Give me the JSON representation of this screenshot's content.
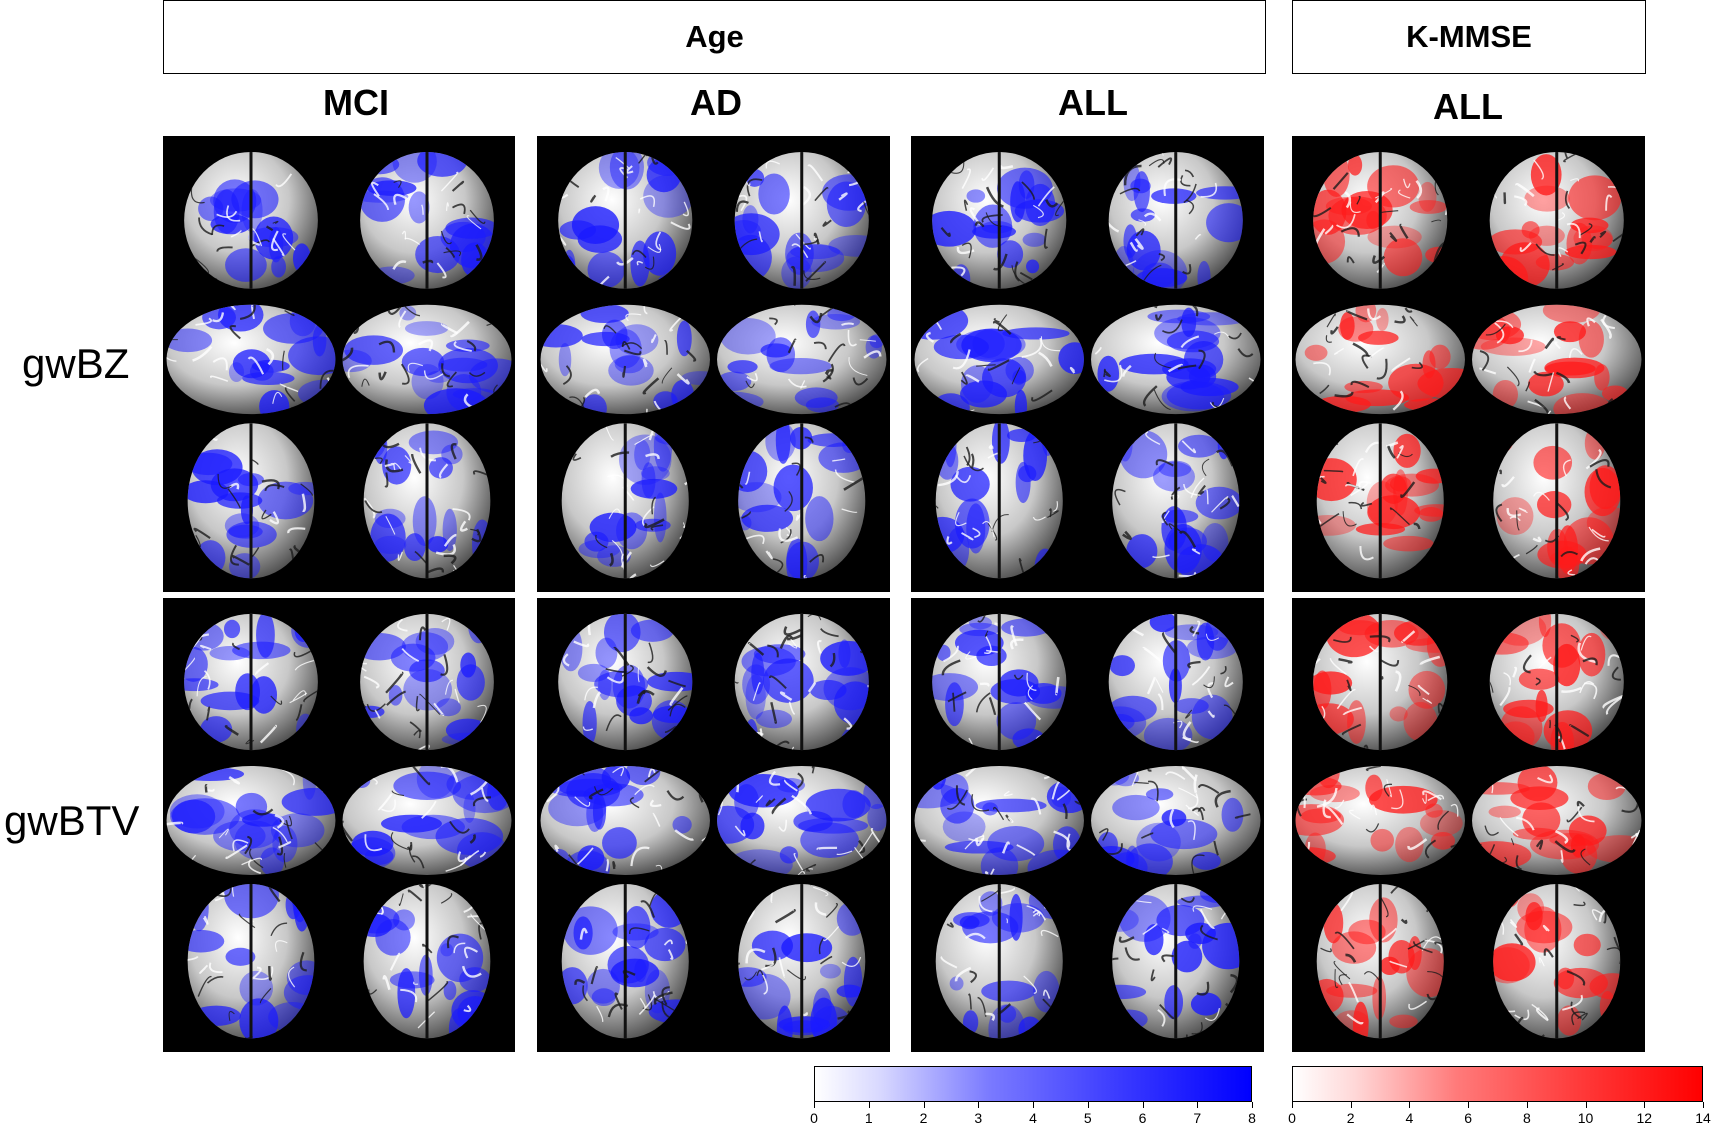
{
  "header": {
    "age_label": "Age",
    "kmmse_label": "K-MMSE"
  },
  "columns": [
    "MCI",
    "AD",
    "ALL",
    "ALL"
  ],
  "rows": [
    "gwBZ",
    "gwBTV"
  ],
  "colors": {
    "age_map": "#1a1aff",
    "kmmse_map": "#ff1a1a",
    "panel_bg": "#000000"
  },
  "colorbars": {
    "age": {
      "ticks": [
        "0",
        "1",
        "2",
        "3",
        "4",
        "5",
        "6",
        "7",
        "8"
      ],
      "color": "#0000ff"
    },
    "kmmse": {
      "ticks": [
        "0",
        "2",
        "4",
        "6",
        "8",
        "10",
        "12",
        "14"
      ],
      "color": "#ff0000"
    }
  }
}
